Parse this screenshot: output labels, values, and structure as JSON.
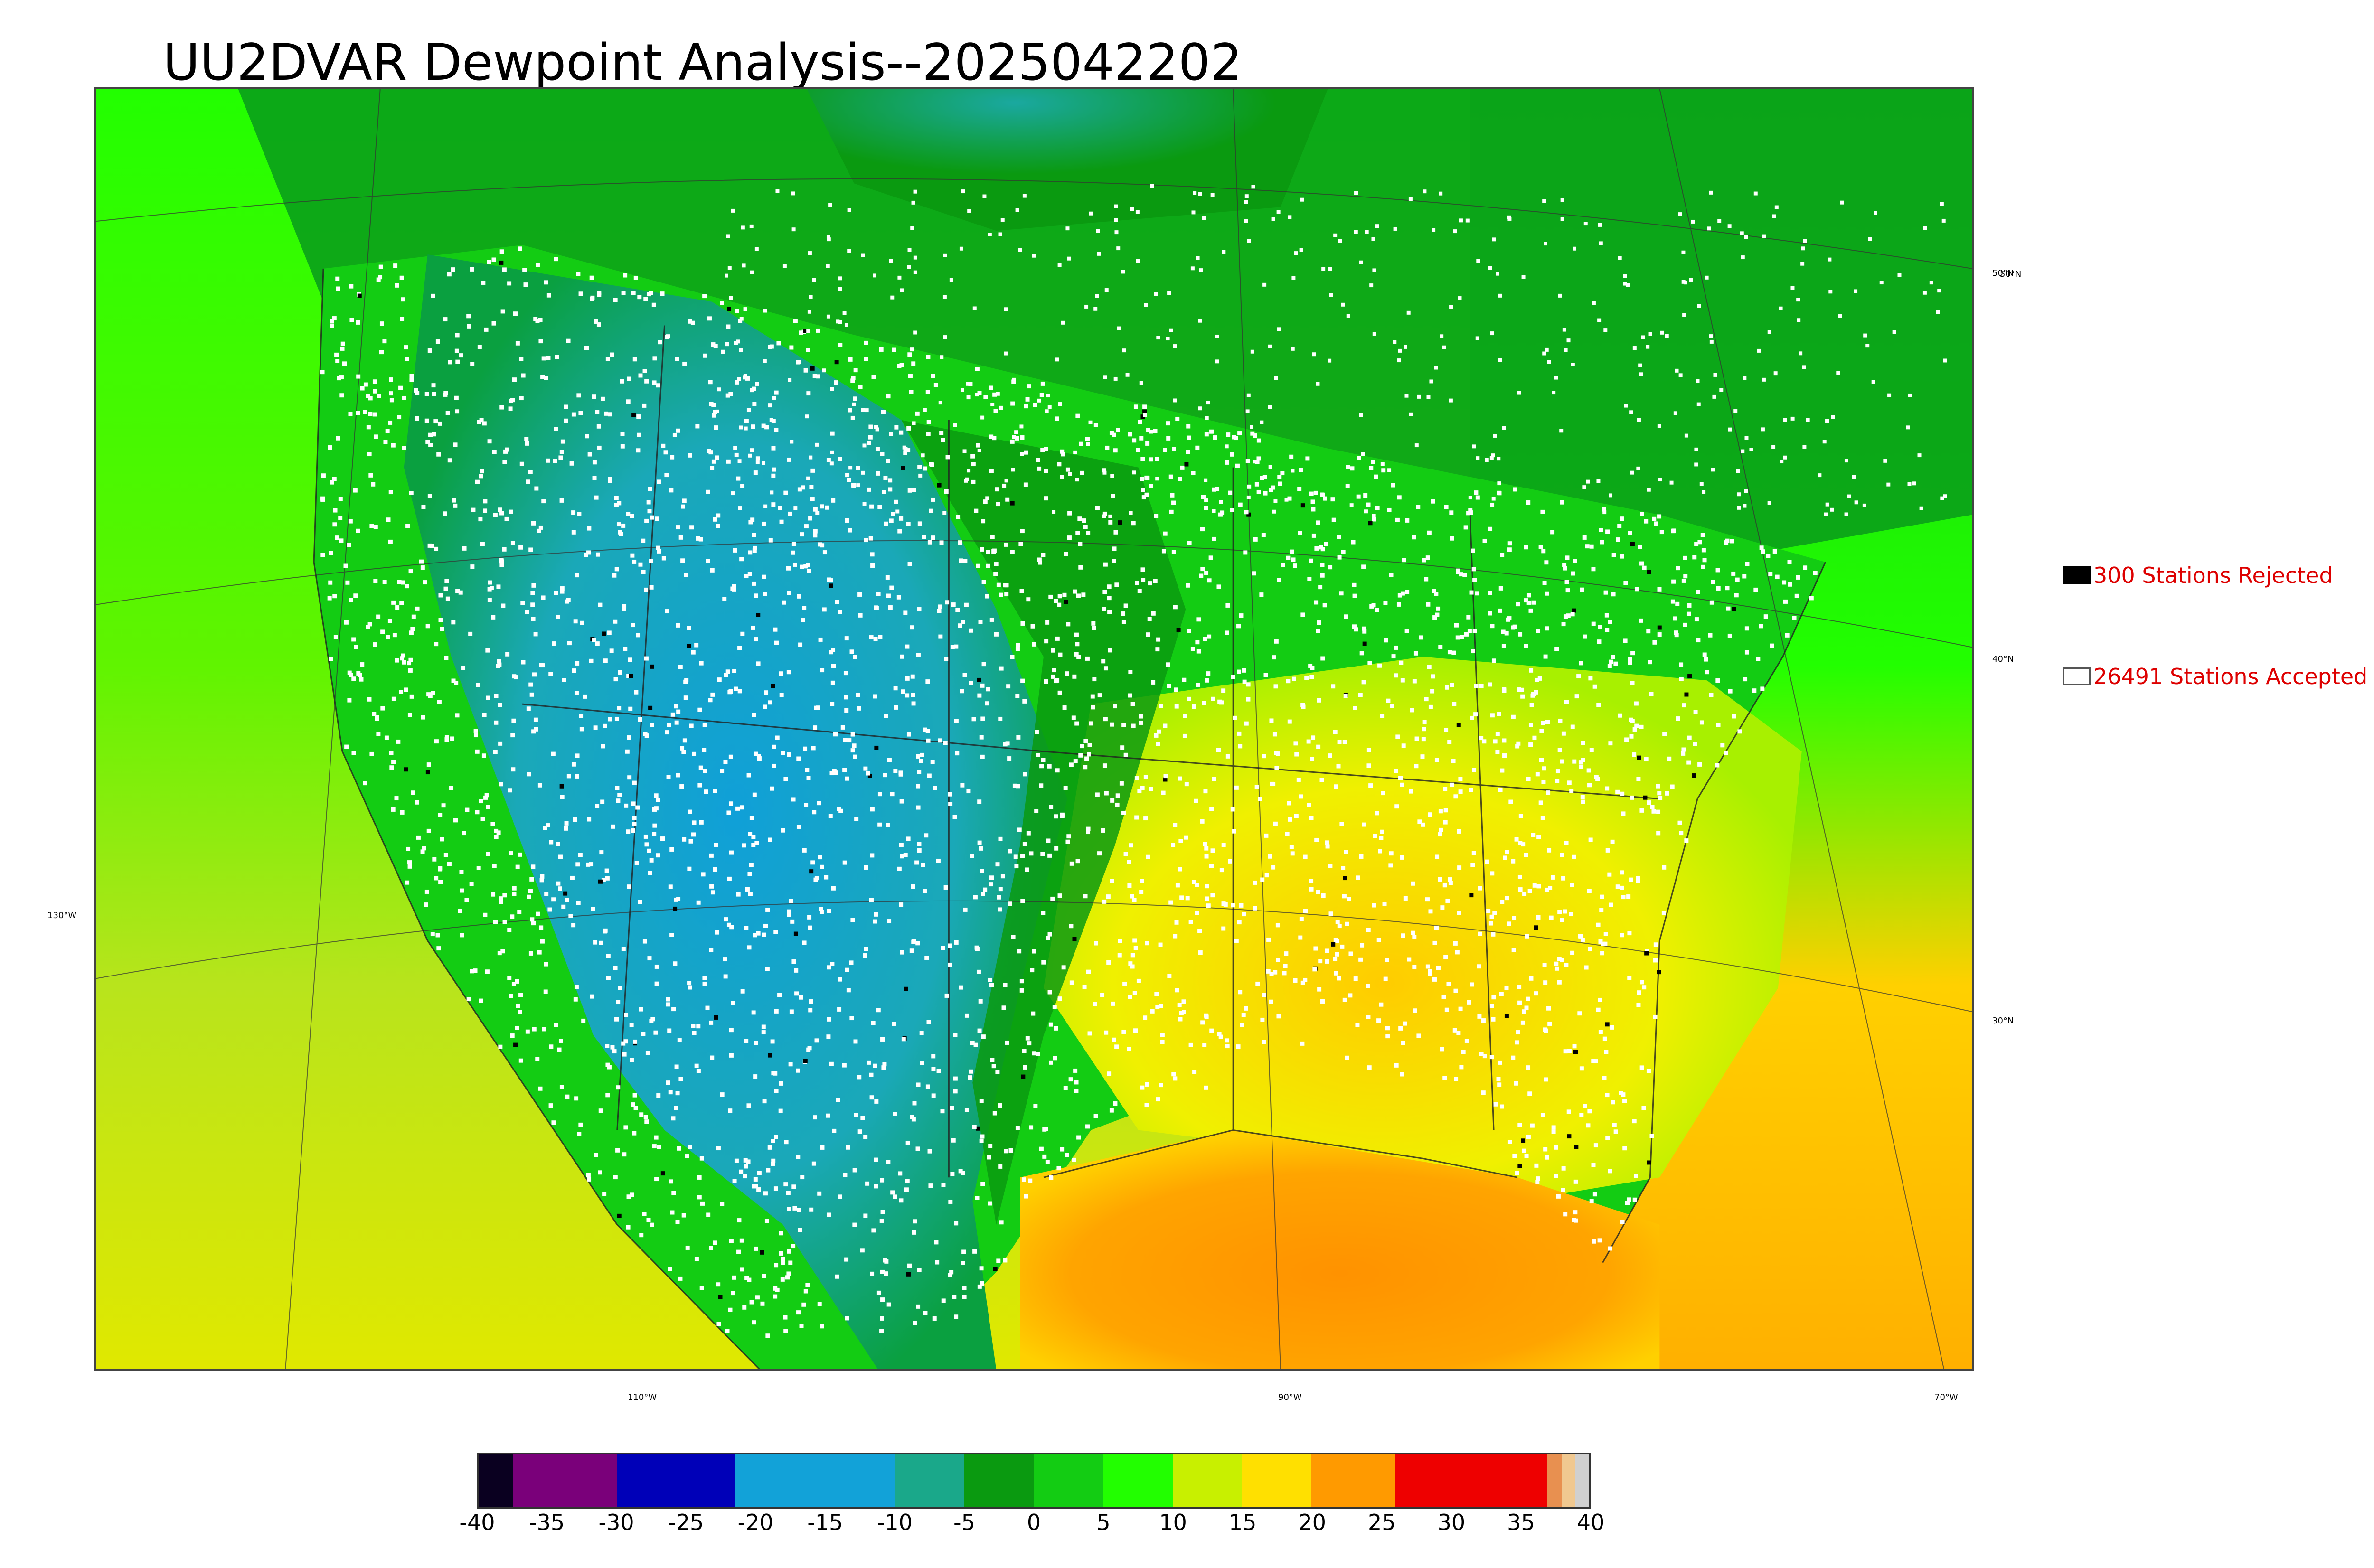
{
  "title": "UU2DVAR Dewpoint Analysis--2025042202",
  "graticule": {
    "lat_labels": [
      "50°N",
      "40°N",
      "30°N"
    ],
    "lon_labels": [
      "130°W",
      "110°W",
      "90°W",
      "70°W"
    ]
  },
  "legend": {
    "rejected": {
      "label": "300 Stations Rejected",
      "color": "#000000"
    },
    "accepted": {
      "label": "26491 Stations Accepted",
      "color": "#ffffff"
    }
  },
  "colorbar": {
    "min": -40,
    "max": 40,
    "tick_labels": [
      "-40",
      "-35",
      "-30",
      "-25",
      "-20",
      "-15",
      "-10",
      "-5",
      "0",
      "5",
      "10",
      "15",
      "20",
      "25",
      "30",
      "35",
      "40"
    ],
    "bands": [
      {
        "from": -40,
        "to": -37.5,
        "color": "#0a0020"
      },
      {
        "from": -37.5,
        "to": -30,
        "color": "#7a007a"
      },
      {
        "from": -30,
        "to": -21.5,
        "color": "#0000b8"
      },
      {
        "from": -21.5,
        "to": -10,
        "color": "#12a2d8"
      },
      {
        "from": -10,
        "to": -5,
        "color": "#1aa88a"
      },
      {
        "from": -5,
        "to": 0,
        "color": "#0a9a10"
      },
      {
        "from": 0,
        "to": 5,
        "color": "#13cc13"
      },
      {
        "from": 5,
        "to": 10,
        "color": "#22ff00"
      },
      {
        "from": 10,
        "to": 15,
        "color": "#c8f000"
      },
      {
        "from": 15,
        "to": 20,
        "color": "#ffe000"
      },
      {
        "from": 20,
        "to": 26,
        "color": "#ff9a00"
      },
      {
        "from": 26,
        "to": 37,
        "color": "#ee0000"
      },
      {
        "from": 37,
        "to": 38,
        "color": "#e89050"
      },
      {
        "from": 38,
        "to": 39,
        "color": "#f0c890"
      },
      {
        "from": 39,
        "to": 40,
        "color": "#d0d0d0"
      }
    ]
  },
  "field_colors": {
    "ocean_pacific": "#b8e41c",
    "ocean_atlantic_north": "#13cc13",
    "gulf": "#ff9a00",
    "west_dry": "#12a2d8",
    "plains": "#0a9a10",
    "southeast": "#ffe000",
    "canada": "#13cc13"
  }
}
